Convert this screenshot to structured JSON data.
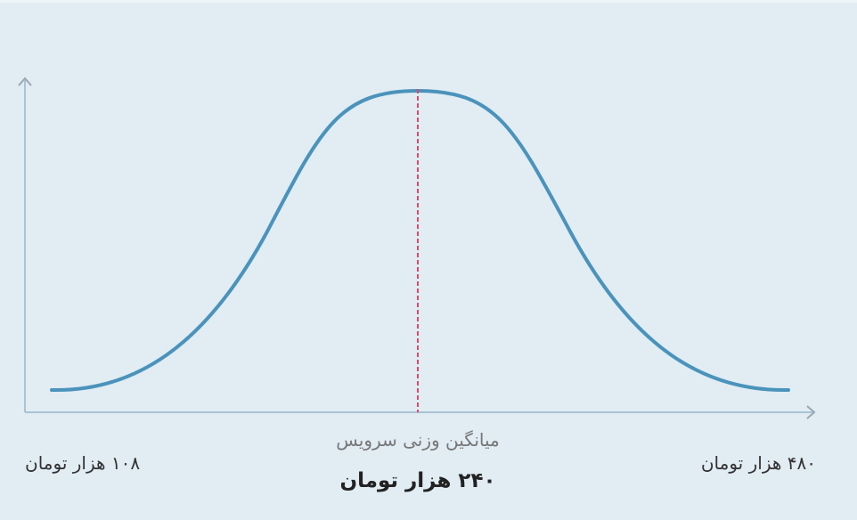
{
  "labels": {
    "min": "۱۰۸ هزار تومان",
    "max": "۴۸۰ هزار تومان",
    "mean_caption": "میانگین وزنی سرویس",
    "mean_value": "۲۴۰ هزار تومان"
  }
}
